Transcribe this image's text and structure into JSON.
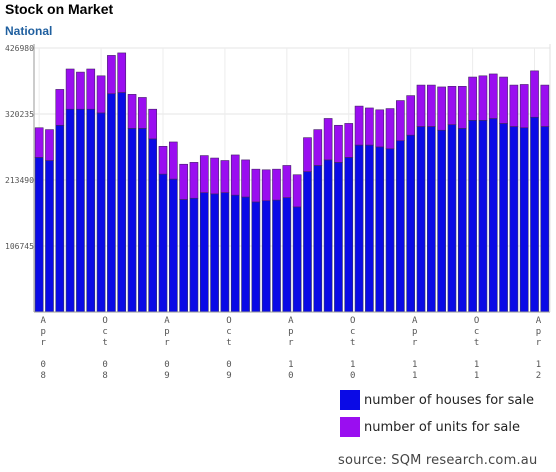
{
  "title": "Stock on Market",
  "subtitle": "National",
  "source": "source: SQM research.com.au",
  "chart_data": {
    "type": "bar",
    "stacked": true,
    "ylim": [
      0,
      426980
    ],
    "yticks": [
      106745,
      213490,
      320235,
      426980
    ],
    "xtick_labels": [
      {
        "index": 0,
        "month": "Apr",
        "year": "08"
      },
      {
        "index": 6,
        "month": "Oct",
        "year": "08"
      },
      {
        "index": 12,
        "month": "Apr",
        "year": "09"
      },
      {
        "index": 18,
        "month": "Oct",
        "year": "09"
      },
      {
        "index": 24,
        "month": "Apr",
        "year": "10"
      },
      {
        "index": 30,
        "month": "Oct",
        "year": "10"
      },
      {
        "index": 36,
        "month": "Apr",
        "year": "11"
      },
      {
        "index": 42,
        "month": "Oct",
        "year": "11"
      },
      {
        "index": 48,
        "month": "Apr",
        "year": "12"
      }
    ],
    "grid": true,
    "legend_position": "bottom-right",
    "series": [
      {
        "name": "number of houses for sale",
        "color": "#0a0ae6",
        "values": [
          250000,
          245000,
          302000,
          328000,
          328000,
          328000,
          322000,
          353000,
          355000,
          297000,
          297000,
          280000,
          223000,
          215000,
          182000,
          184000,
          193000,
          191000,
          193000,
          189000,
          186000,
          178000,
          180000,
          181000,
          185000,
          170000,
          227000,
          237000,
          246000,
          242000,
          250000,
          270000,
          270000,
          267000,
          264000,
          277000,
          286000,
          300000,
          300000,
          294000,
          303000,
          297000,
          310000,
          310000,
          313000,
          305000,
          300000,
          298000,
          315000,
          300000
        ]
      },
      {
        "name": "number of units for sale",
        "color": "#9a0ef0",
        "values": [
          48000,
          50000,
          58000,
          65000,
          60000,
          65000,
          60000,
          62000,
          64000,
          55000,
          50000,
          48000,
          45000,
          60000,
          57000,
          58000,
          60000,
          58000,
          52000,
          65000,
          60000,
          53000,
          50000,
          50000,
          52000,
          52000,
          55000,
          58000,
          67000,
          60000,
          55000,
          63000,
          60000,
          60000,
          65000,
          65000,
          64000,
          67000,
          67000,
          70000,
          62000,
          68000,
          70000,
          72000,
          72000,
          75000,
          67000,
          70000,
          75000,
          67000
        ]
      }
    ]
  }
}
